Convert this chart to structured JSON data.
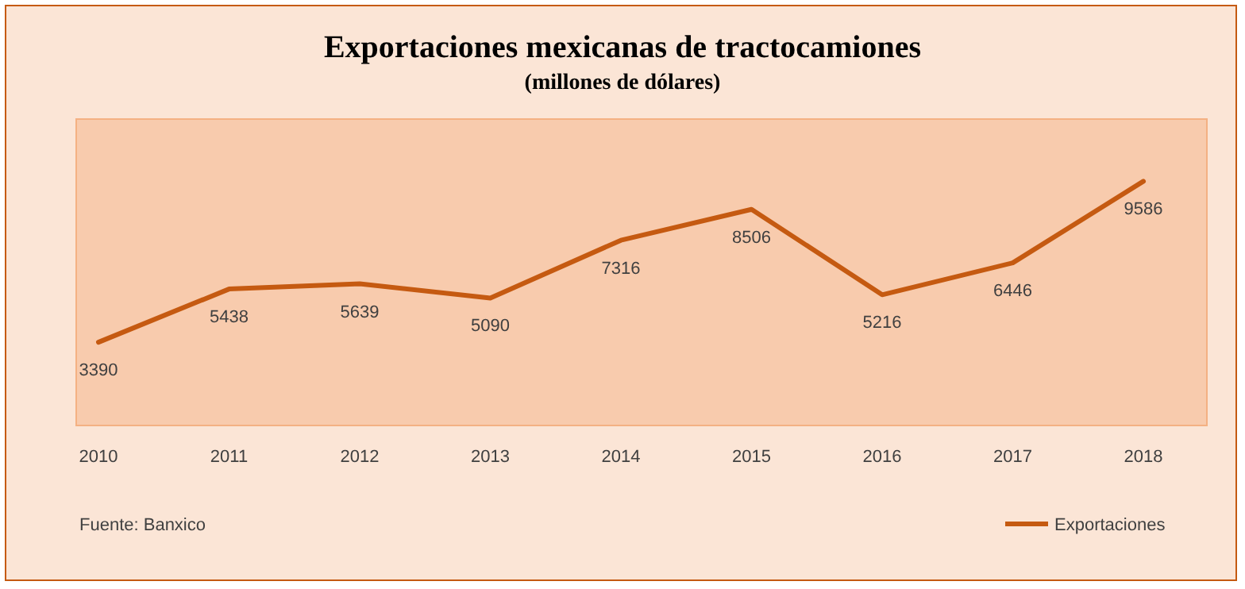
{
  "chart_data": {
    "type": "line",
    "title": "Exportaciones mexicanas de tractocamiones",
    "subtitle": "(millones de dólares)",
    "categories": [
      "2010",
      "2011",
      "2012",
      "2013",
      "2014",
      "2015",
      "2016",
      "2017",
      "2018"
    ],
    "series": [
      {
        "name": "Exportaciones",
        "color": "#c55a11",
        "values": [
          3390,
          5438,
          5639,
          5090,
          7316,
          8506,
          5216,
          6446,
          9586
        ]
      }
    ],
    "data_labels": true,
    "legend": "bottom right",
    "grid": false,
    "marker": "none",
    "line_style": "solid",
    "annotations": [
      "Fuente: Banxico"
    ]
  }
}
